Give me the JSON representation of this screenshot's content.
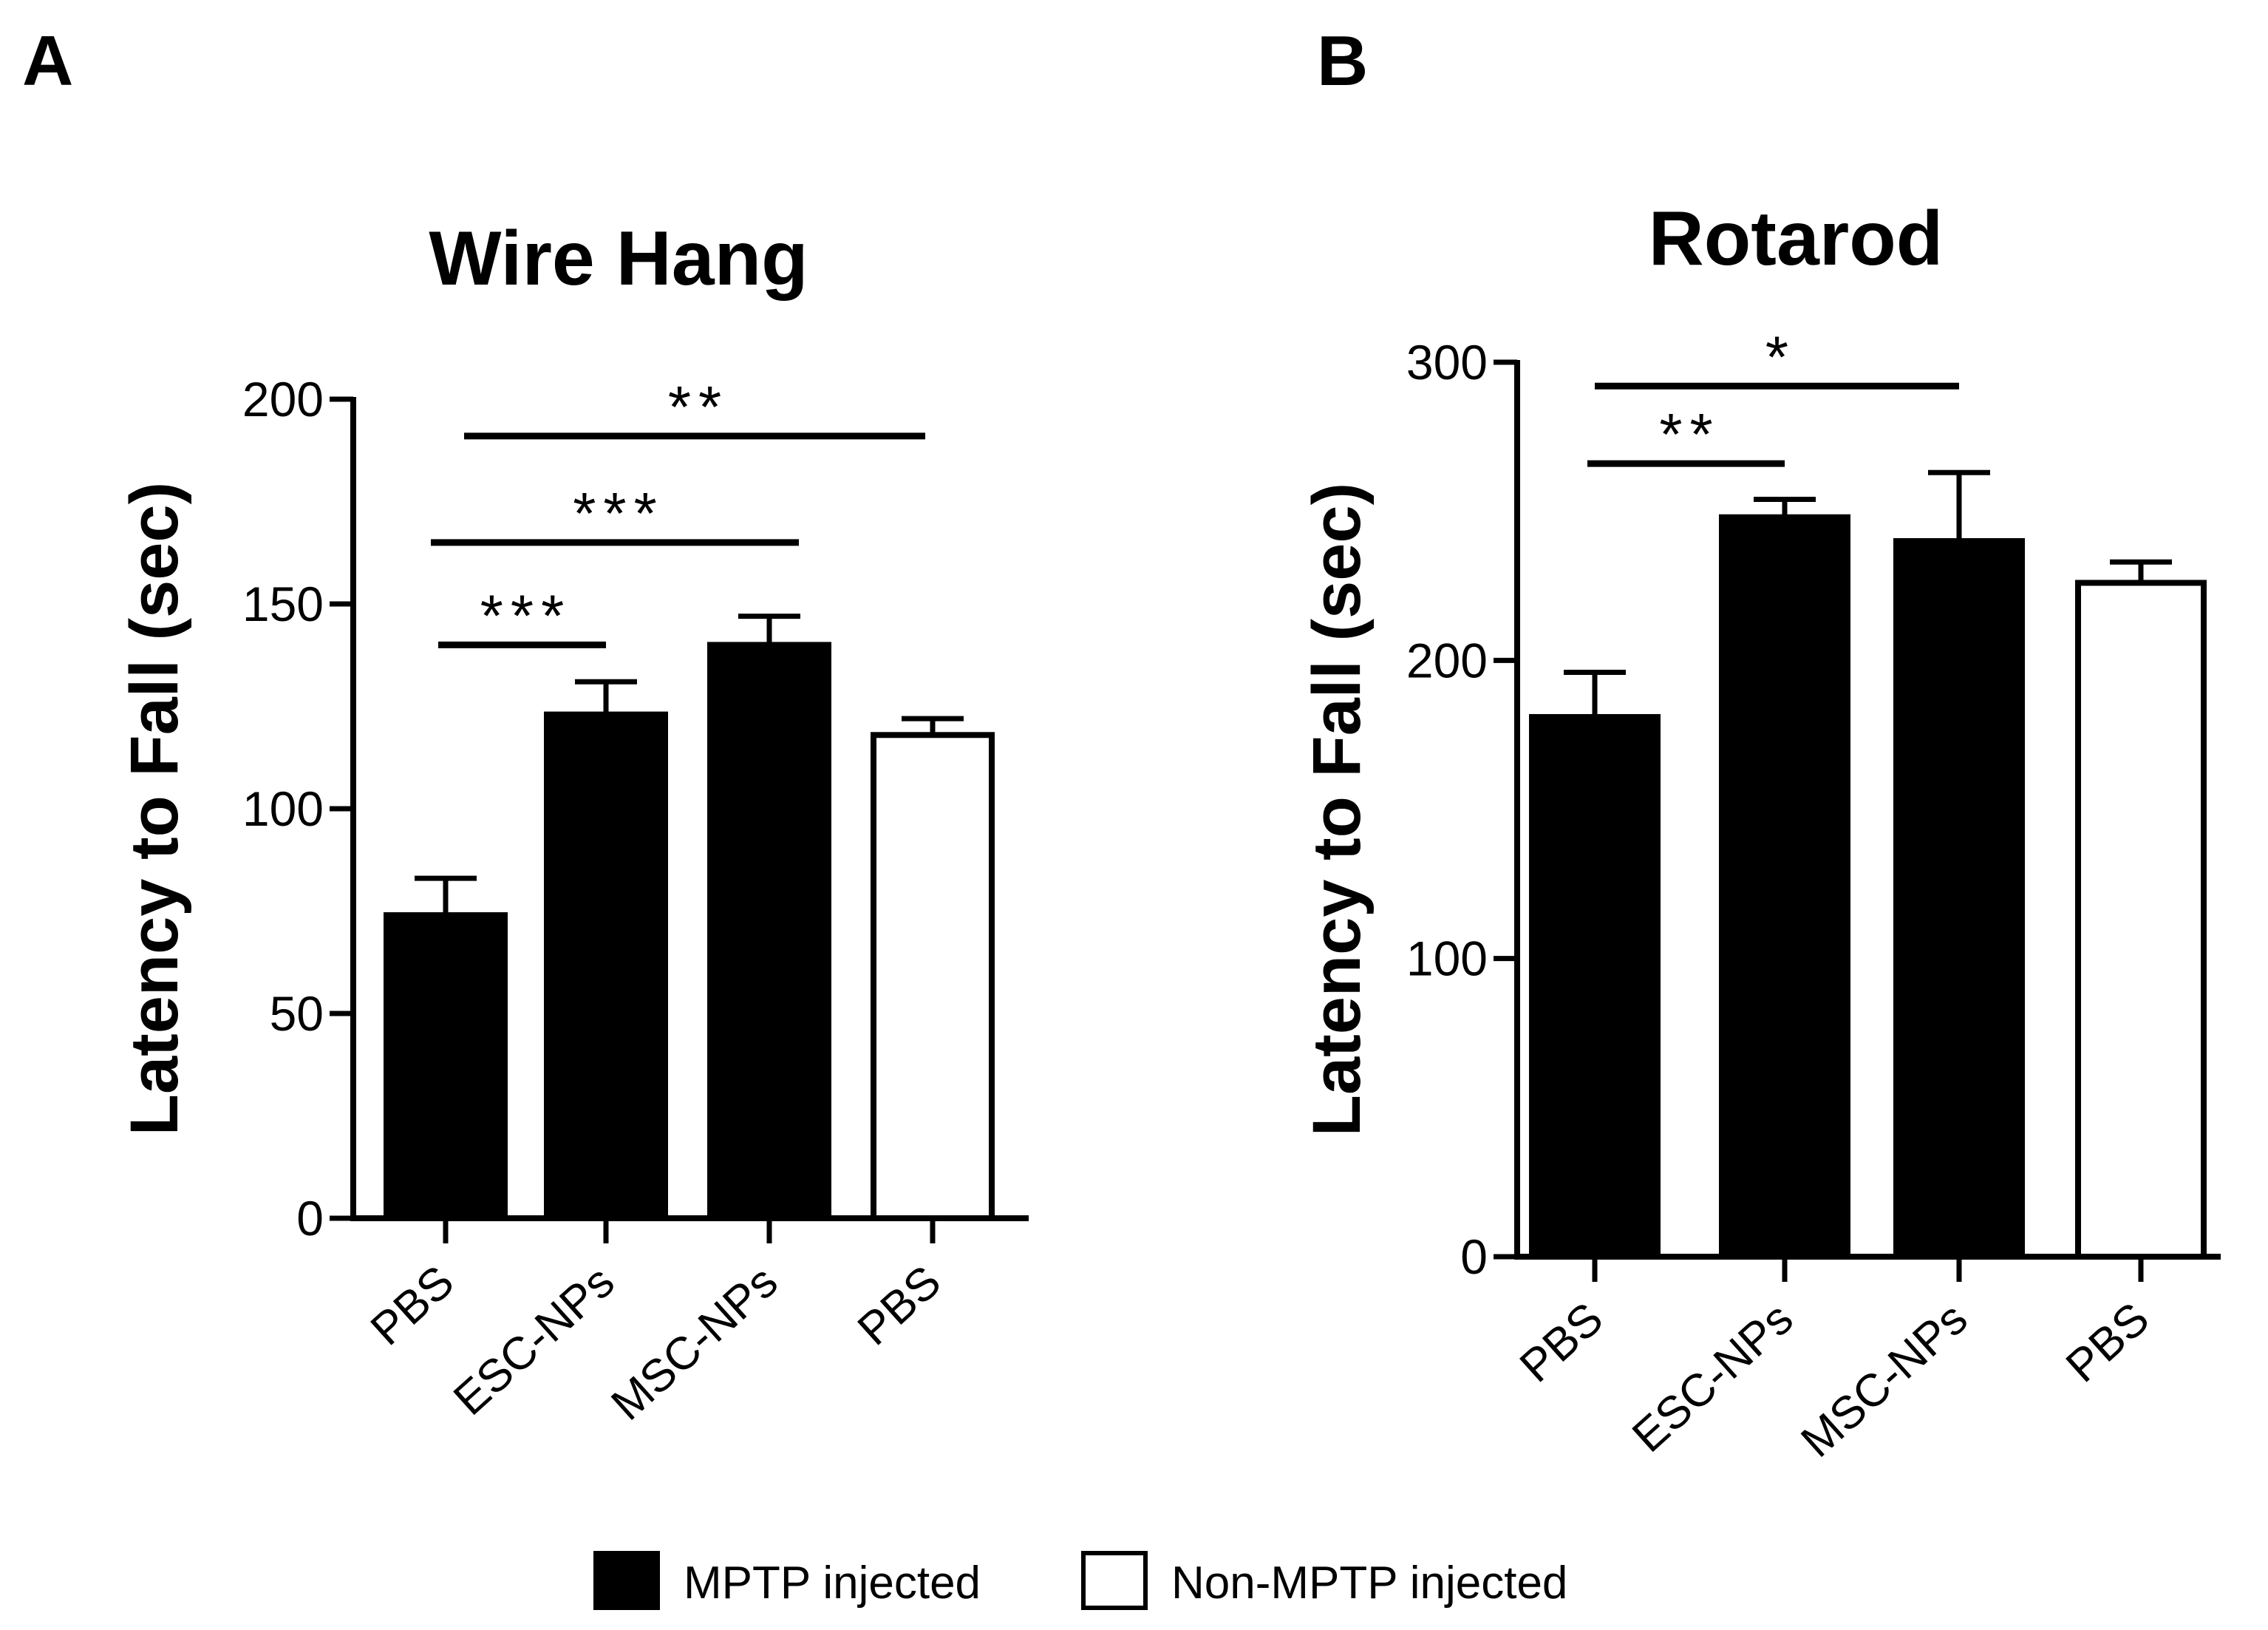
{
  "panel_labels": [
    "A",
    "B"
  ],
  "legend": {
    "items": [
      {
        "label": "MPTP injected",
        "color": "#000000"
      },
      {
        "label": "Non-MPTP injected",
        "color": "#ffffff"
      }
    ]
  },
  "chart_data": [
    {
      "type": "bar",
      "panel": "A",
      "title": "Wire Hang",
      "xlabel": "",
      "ylabel": "Latency to Fall (sec)",
      "ylim": [
        0,
        200
      ],
      "yticks": [
        0,
        50,
        100,
        150,
        200
      ],
      "categories": [
        "PBS",
        "ESC-NPs",
        "MSC-NPs",
        "PBS"
      ],
      "values": [
        74,
        123,
        140,
        118
      ],
      "errors": [
        9,
        8,
        7,
        4
      ],
      "groups": [
        "MPTP injected",
        "MPTP injected",
        "MPTP injected",
        "Non-MPTP injected"
      ],
      "bar_colors": [
        "#000000",
        "#000000",
        "#000000",
        "#ffffff"
      ],
      "significance": [
        {
          "from": 0,
          "to": 1,
          "label": "***",
          "y": 140
        },
        {
          "from": 0,
          "to": 2,
          "label": "***",
          "y": 165
        },
        {
          "from": 0,
          "to": 3,
          "label": "**",
          "y": 191
        }
      ]
    },
    {
      "type": "bar",
      "panel": "B",
      "title": "Rotarod",
      "xlabel": "",
      "ylabel": "Latency to Fall (sec)",
      "ylim": [
        0,
        300
      ],
      "yticks": [
        0,
        100,
        200,
        300
      ],
      "categories": [
        "PBS",
        "ESC-NPs",
        "MSC-NPs",
        "PBS"
      ],
      "values": [
        181,
        248,
        240,
        226
      ],
      "errors": [
        15,
        6,
        23,
        7
      ],
      "groups": [
        "MPTP injected",
        "MPTP injected",
        "MPTP injected",
        "Non-MPTP injected"
      ],
      "bar_colors": [
        "#000000",
        "#000000",
        "#000000",
        "#ffffff"
      ],
      "significance": [
        {
          "from": 0,
          "to": 1,
          "label": "**",
          "y": 266
        },
        {
          "from": 0,
          "to": 2,
          "label": "*",
          "y": 292
        }
      ]
    }
  ]
}
